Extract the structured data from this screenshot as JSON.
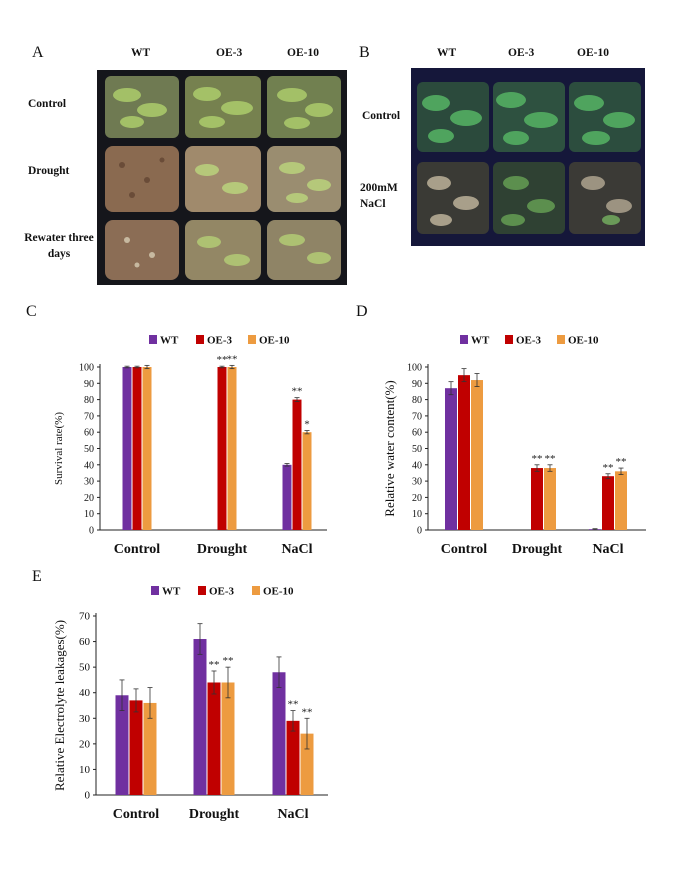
{
  "colors": {
    "WT": "#7030a0",
    "OE-3": "#c00000",
    "OE-10": "#ed9b40"
  },
  "panelA": {
    "letter": "A",
    "columns": [
      "WT",
      "OE-3",
      "OE-10"
    ],
    "rows": [
      "Control",
      "Drought",
      "Rewater three days"
    ]
  },
  "panelB": {
    "letter": "B",
    "columns": [
      "WT",
      "OE-3",
      "OE-10"
    ],
    "rows": [
      "Control",
      "200mM NaCl"
    ]
  },
  "chart_data": [
    {
      "panel": "C",
      "type": "bar",
      "categories": [
        "Control",
        "Drought",
        "NaCl"
      ],
      "ylabel": "Survival rate(%)",
      "ylim": [
        0,
        100
      ],
      "yticks": [
        0,
        10,
        20,
        30,
        40,
        50,
        60,
        70,
        80,
        90,
        100
      ],
      "legend": "top-center",
      "series": [
        {
          "name": "WT",
          "values": [
            100,
            0,
            40
          ],
          "errors": [
            0.5,
            0,
            0.8
          ],
          "marks": [
            "",
            "",
            ""
          ]
        },
        {
          "name": "OE-3",
          "values": [
            100,
            100,
            80
          ],
          "errors": [
            0.5,
            0.5,
            1.2
          ],
          "marks": [
            "",
            "**",
            "**"
          ]
        },
        {
          "name": "OE-10",
          "values": [
            100,
            100,
            60
          ],
          "errors": [
            1,
            1,
            1
          ],
          "marks": [
            "",
            "**",
            "*"
          ]
        }
      ]
    },
    {
      "panel": "D",
      "type": "bar",
      "categories": [
        "Control",
        "Drought",
        "NaCl"
      ],
      "ylabel": "Relative water content(%)",
      "ylim": [
        0,
        100
      ],
      "yticks": [
        0,
        10,
        20,
        30,
        40,
        50,
        60,
        70,
        80,
        90,
        100
      ],
      "legend": "top-center",
      "series": [
        {
          "name": "WT",
          "values": [
            87,
            0,
            0.5
          ],
          "errors": [
            4,
            0,
            0.3
          ],
          "marks": [
            "",
            "",
            ""
          ]
        },
        {
          "name": "OE-3",
          "values": [
            95,
            38,
            33
          ],
          "errors": [
            4,
            2,
            1.5
          ],
          "marks": [
            "",
            "**",
            "**"
          ]
        },
        {
          "name": "OE-10",
          "values": [
            92,
            38,
            36
          ],
          "errors": [
            4,
            2,
            2
          ],
          "marks": [
            "",
            "**",
            "**"
          ]
        }
      ]
    },
    {
      "panel": "E",
      "type": "bar",
      "categories": [
        "Control",
        "Drought",
        "NaCl"
      ],
      "ylabel": "Relative Electrolyte leakages(%)",
      "ylim": [
        0,
        70
      ],
      "yticks": [
        0,
        10,
        20,
        30,
        40,
        50,
        60,
        70
      ],
      "legend": "top-center",
      "series": [
        {
          "name": "WT",
          "values": [
            39,
            61,
            48
          ],
          "errors": [
            6,
            6,
            6
          ],
          "marks": [
            "",
            "",
            ""
          ]
        },
        {
          "name": "OE-3",
          "values": [
            37,
            44,
            29
          ],
          "errors": [
            4.5,
            4.5,
            4
          ],
          "marks": [
            "",
            "**",
            "**"
          ]
        },
        {
          "name": "OE-10",
          "values": [
            36,
            44,
            24
          ],
          "errors": [
            6,
            6,
            6
          ],
          "marks": [
            "",
            "**",
            "**"
          ]
        }
      ]
    }
  ]
}
